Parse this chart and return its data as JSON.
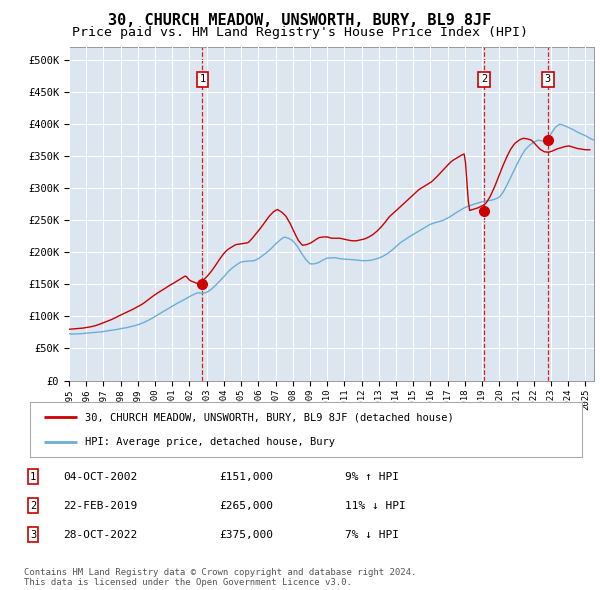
{
  "title": "30, CHURCH MEADOW, UNSWORTH, BURY, BL9 8JF",
  "subtitle": "Price paid vs. HM Land Registry's House Price Index (HPI)",
  "title_fontsize": 11,
  "subtitle_fontsize": 9.5,
  "ylabel_values": [
    "£0",
    "£50K",
    "£100K",
    "£150K",
    "£200K",
    "£250K",
    "£300K",
    "£350K",
    "£400K",
    "£450K",
    "£500K"
  ],
  "yticks": [
    0,
    50000,
    100000,
    150000,
    200000,
    250000,
    300000,
    350000,
    400000,
    450000,
    500000
  ],
  "ylim": [
    0,
    520000
  ],
  "xlim_start": 1995.0,
  "xlim_end": 2025.5,
  "plot_bg_color": "#dce6f1",
  "grid_color": "#ffffff",
  "sale_color": "#cc0000",
  "hpi_color": "#6baed6",
  "sale_points": [
    {
      "year": 2002.75,
      "price": 151000,
      "label": "1"
    },
    {
      "year": 2019.12,
      "price": 265000,
      "label": "2"
    },
    {
      "year": 2022.82,
      "price": 375000,
      "label": "3"
    }
  ],
  "legend_entries": [
    "30, CHURCH MEADOW, UNSWORTH, BURY, BL9 8JF (detached house)",
    "HPI: Average price, detached house, Bury"
  ],
  "table_data": [
    {
      "num": "1",
      "date": "04-OCT-2002",
      "price": "£151,000",
      "hpi": "9% ↑ HPI"
    },
    {
      "num": "2",
      "date": "22-FEB-2019",
      "price": "£265,000",
      "hpi": "11% ↓ HPI"
    },
    {
      "num": "3",
      "date": "28-OCT-2022",
      "price": "£375,000",
      "hpi": "7% ↓ HPI"
    }
  ],
  "footer": "Contains HM Land Registry data © Crown copyright and database right 2024.\nThis data is licensed under the Open Government Licence v3.0.",
  "hpi_values": [
    73000,
    72500,
    72800,
    73200,
    74000,
    74500,
    75000,
    75500,
    76500,
    77500,
    78500,
    79500,
    81000,
    82000,
    83500,
    85000,
    87000,
    89500,
    92500,
    96000,
    100000,
    104000,
    108000,
    112000,
    116000,
    120000,
    123500,
    127000,
    131000,
    134500,
    137000,
    136000,
    137500,
    142000,
    148000,
    155000,
    162000,
    170000,
    176000,
    181000,
    185000,
    186000,
    186500,
    187000,
    190000,
    195000,
    200000,
    206000,
    213000,
    219000,
    224000,
    222000,
    218000,
    210000,
    199000,
    189000,
    182000,
    182000,
    184000,
    188000,
    191000,
    191500,
    191500,
    190000,
    189500,
    189000,
    188500,
    188000,
    187000,
    187000,
    187500,
    189000,
    191000,
    194000,
    198000,
    203000,
    209000,
    215000,
    219500,
    224000,
    228000,
    232000,
    236000,
    240000,
    244000,
    246000,
    248000,
    250000,
    253500,
    257500,
    262000,
    266000,
    270000,
    272500,
    275000,
    277000,
    279000,
    280000,
    281000,
    283000,
    286000,
    295000,
    308000,
    322000,
    336000,
    349000,
    360000,
    367000,
    372000,
    375000,
    374000,
    371000,
    385000,
    395000,
    400000,
    398000,
    395000,
    392000,
    388000,
    385000,
    382000,
    378000,
    375000,
    373000,
    372000,
    371000
  ],
  "sale_line_values": [
    80000,
    80500,
    81000,
    81500,
    82500,
    83500,
    85000,
    87000,
    89500,
    92000,
    94500,
    97500,
    101000,
    104000,
    107000,
    110000,
    113500,
    117000,
    121000,
    126000,
    131000,
    135500,
    139500,
    143500,
    148000,
    151500,
    155500,
    159500,
    163500,
    156000,
    153500,
    151000,
    155000,
    161500,
    169000,
    178000,
    188000,
    197000,
    204000,
    208000,
    212000,
    213000,
    214000,
    215000,
    222000,
    230000,
    238000,
    247000,
    256000,
    263000,
    267000,
    263000,
    257000,
    246000,
    232000,
    219000,
    211000,
    212000,
    214500,
    219000,
    223000,
    224000,
    224000,
    222000,
    222000,
    222000,
    220500,
    219000,
    218000,
    218000,
    219500,
    221000,
    224000,
    228000,
    233500,
    240000,
    248000,
    256500,
    262000,
    268000,
    274000,
    280000,
    286000,
    292000,
    298000,
    302000,
    306000,
    310000,
    316000,
    323000,
    330000,
    337000,
    343000,
    347000,
    351000,
    354000,
    265000,
    267000,
    269000,
    272000,
    276000,
    286000,
    300000,
    316000,
    333000,
    348000,
    361000,
    370000,
    375000,
    378000,
    377000,
    375000,
    368000,
    361000,
    357000,
    356000,
    358000,
    361000,
    363000,
    365000,
    366000,
    364000,
    362000,
    361000,
    360000,
    360000
  ]
}
